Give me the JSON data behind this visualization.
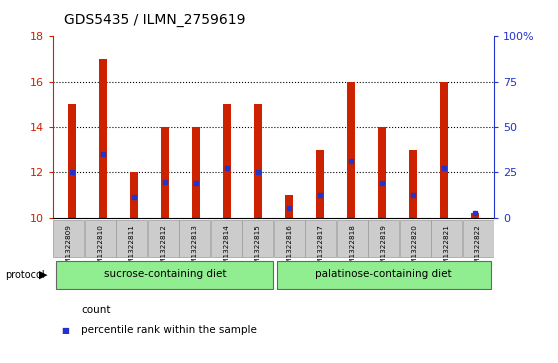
{
  "title": "GDS5435 / ILMN_2759619",
  "samples": [
    "GSM1322809",
    "GSM1322810",
    "GSM1322811",
    "GSM1322812",
    "GSM1322813",
    "GSM1322814",
    "GSM1322815",
    "GSM1322816",
    "GSM1322817",
    "GSM1322818",
    "GSM1322819",
    "GSM1322820",
    "GSM1322821",
    "GSM1322822"
  ],
  "bar_heights": [
    15.0,
    17.0,
    12.0,
    14.0,
    14.0,
    15.0,
    15.0,
    11.0,
    13.0,
    16.0,
    14.0,
    13.0,
    16.0,
    10.2
  ],
  "percentile_values": [
    12.0,
    12.8,
    10.9,
    11.6,
    11.55,
    12.2,
    12.0,
    10.45,
    11.0,
    12.5,
    11.55,
    11.0,
    12.2,
    10.2
  ],
  "bar_color": "#CC2200",
  "blue_color": "#2233CC",
  "ylim_left": [
    10,
    18
  ],
  "ylim_right": [
    0,
    100
  ],
  "yticks_left": [
    10,
    12,
    14,
    16,
    18
  ],
  "yticks_right": [
    0,
    25,
    50,
    75,
    100
  ],
  "ytick_labels_right": [
    "0",
    "25",
    "50",
    "75",
    "100%"
  ],
  "bar_width": 0.25,
  "baseline": 10,
  "group1_label": "sucrose-containing diet",
  "group2_label": "palatinose-containing diet",
  "protocol_label": "protocol",
  "legend_count": "count",
  "legend_percentile": "percentile rank within the sample",
  "bg_plot": "#FFFFFF",
  "bg_xticklabels": "#CCCCCC",
  "bg_group": "#90EE90",
  "title_fontsize": 10,
  "axis_label_color_left": "#CC2200",
  "axis_label_color_right": "#2233CC",
  "grid_color": "#000000",
  "spine_color": "#000000",
  "group_border_color": "#666666",
  "xtick_border_color": "#999999"
}
